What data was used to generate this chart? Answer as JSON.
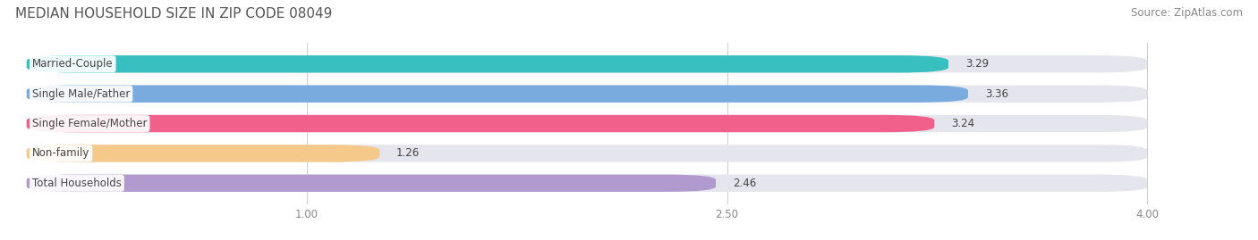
{
  "title": "MEDIAN HOUSEHOLD SIZE IN ZIP CODE 08049",
  "source": "Source: ZipAtlas.com",
  "categories": [
    "Married-Couple",
    "Single Male/Father",
    "Single Female/Mother",
    "Non-family",
    "Total Households"
  ],
  "values": [
    3.29,
    3.36,
    3.24,
    1.26,
    2.46
  ],
  "bar_colors": [
    "#38bfbf",
    "#7aabdf",
    "#f0608a",
    "#f5c98a",
    "#b09ace"
  ],
  "bar_bg_color": "#e5e5ed",
  "xdata_min": 0.0,
  "xdata_max": 4.0,
  "xlim_min": -0.05,
  "xlim_max": 4.35,
  "xticks": [
    1.0,
    2.5,
    4.0
  ],
  "title_fontsize": 11,
  "source_fontsize": 8.5,
  "label_fontsize": 8.5,
  "value_fontsize": 8.5,
  "background_color": "#ffffff",
  "bar_height": 0.58,
  "grid_color": "#cccccc",
  "text_color_dark": "#444444",
  "text_color_light": "#ffffff",
  "tick_fontsize": 8.5,
  "tick_color": "#888888"
}
